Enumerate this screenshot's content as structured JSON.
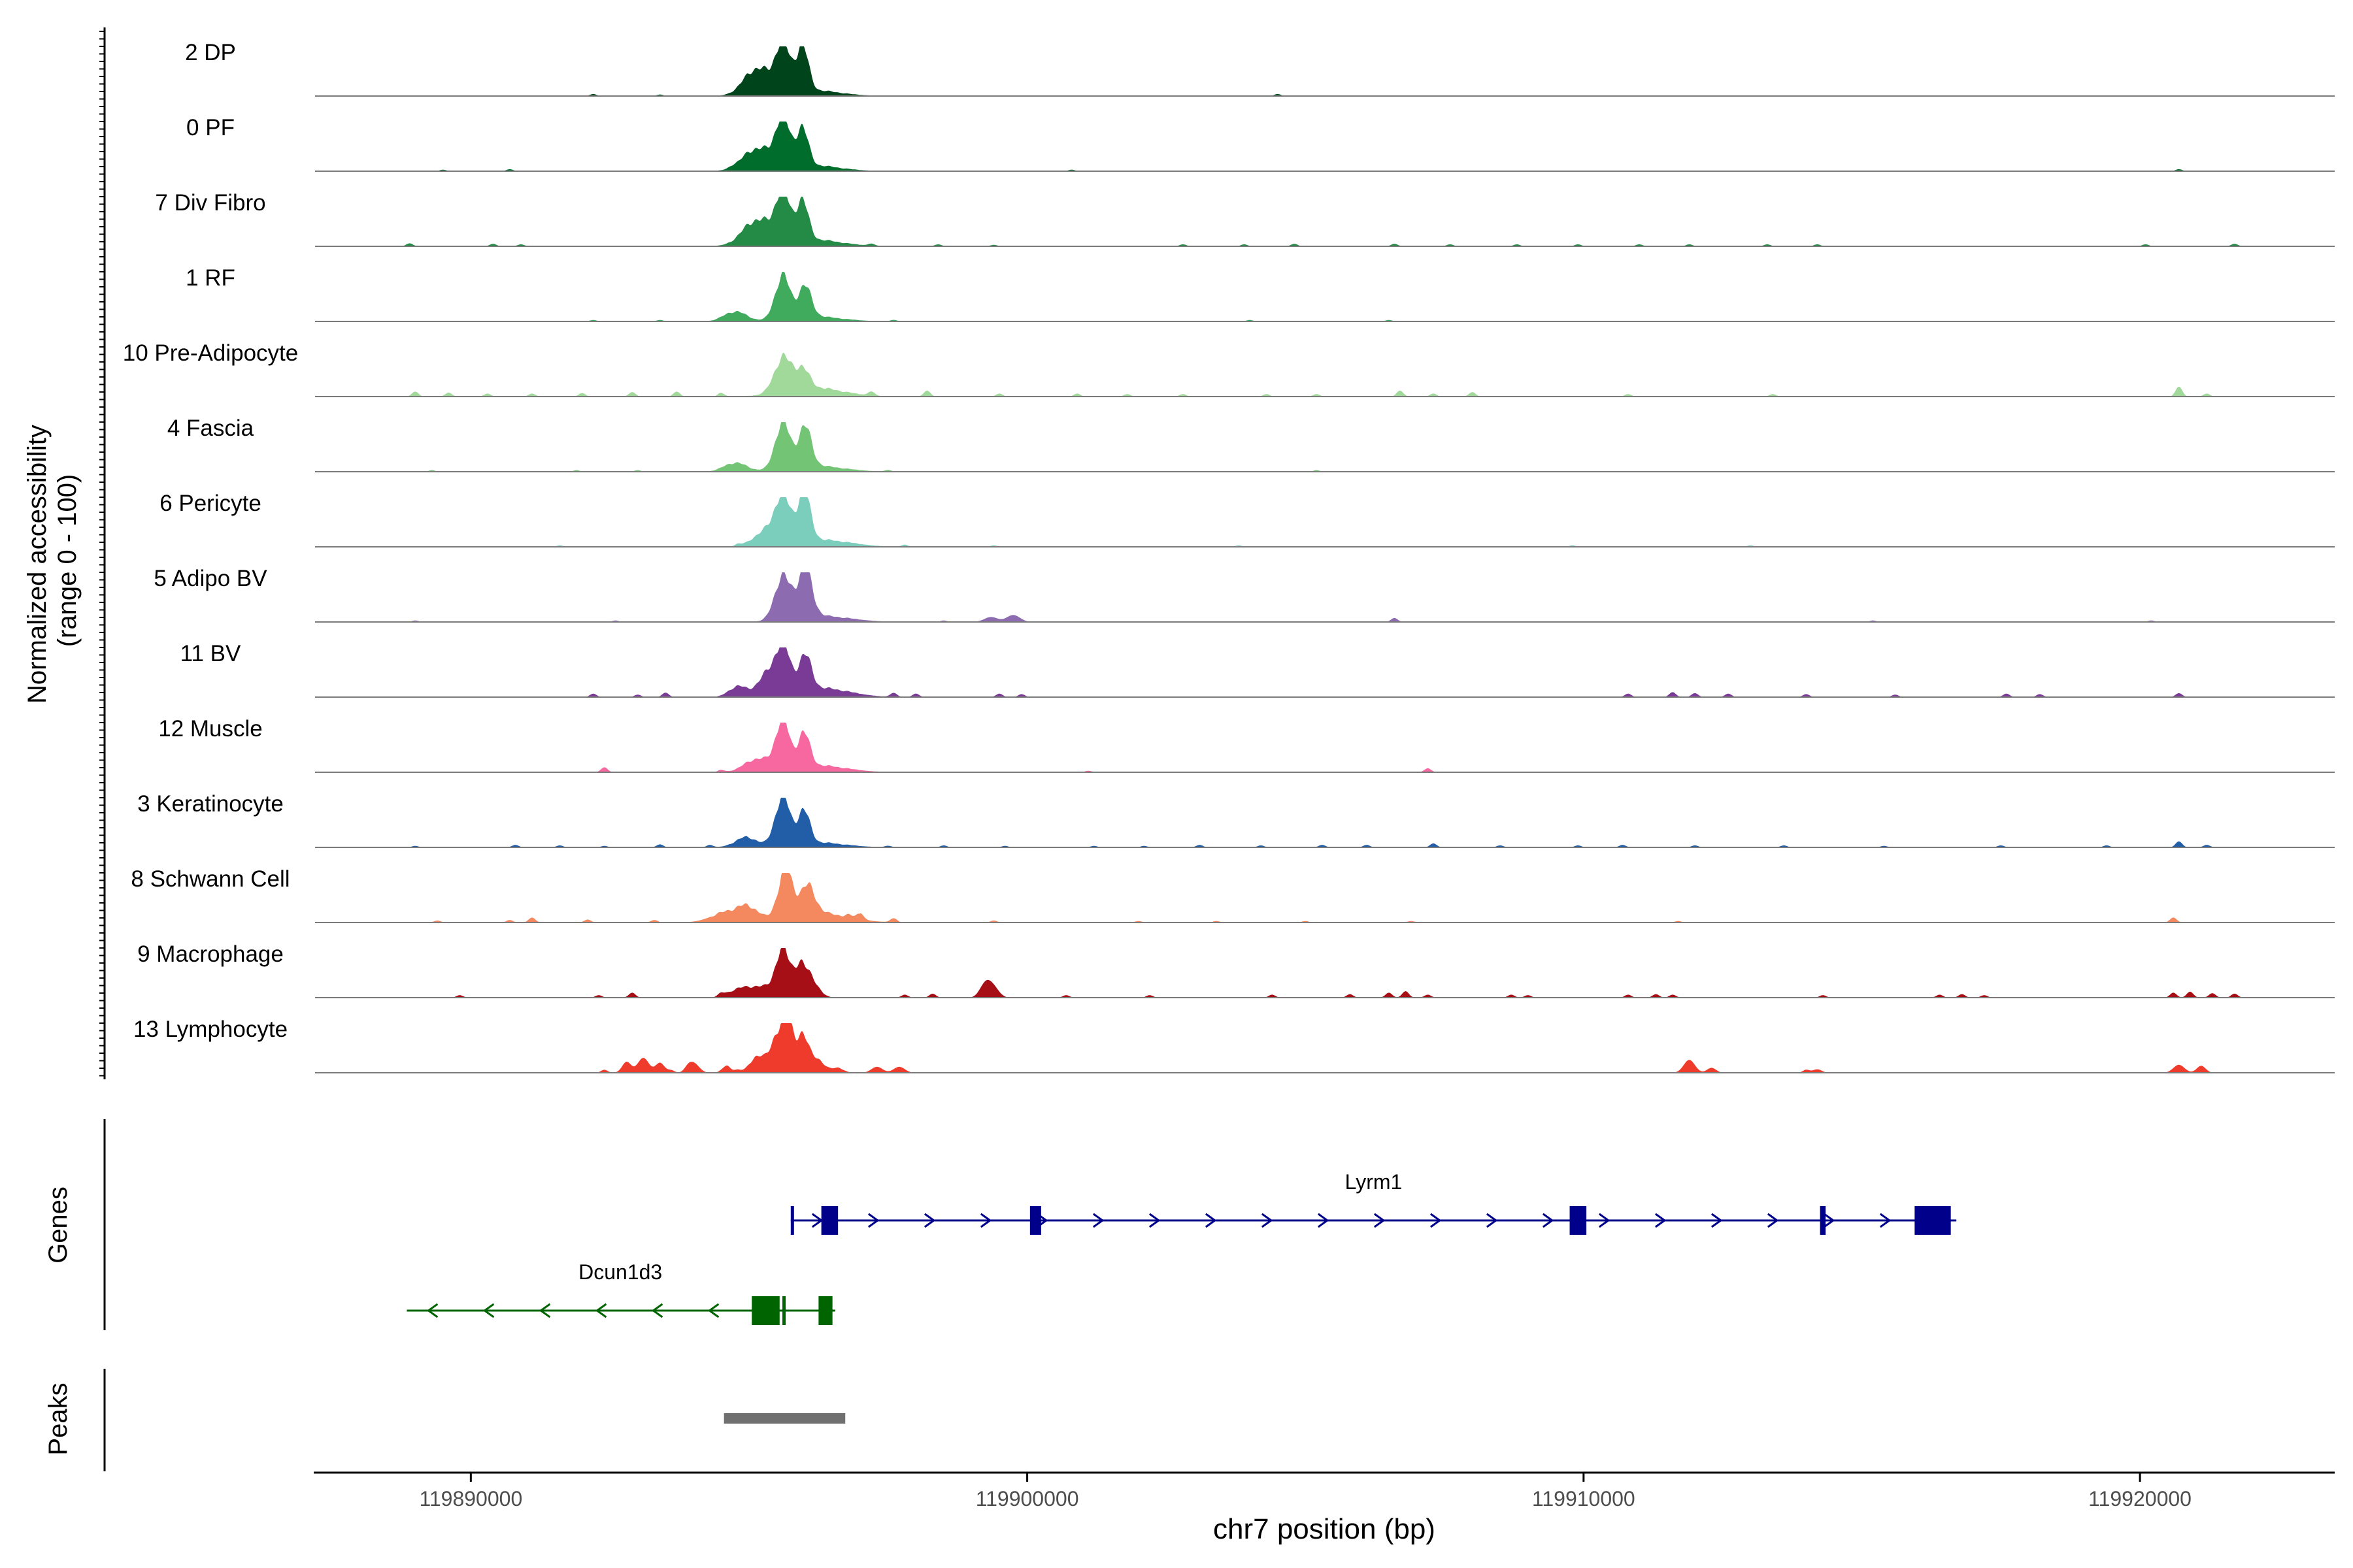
{
  "chart_data": {
    "type": "area",
    "xlabel": "chr7 position (bp)",
    "xlim": [
      119887200,
      119923500
    ],
    "x_ticks": [
      119890000,
      119900000,
      119910000,
      119920000
    ],
    "x_tick_labels": [
      "119890000",
      "119900000",
      "119910000",
      "119920000"
    ],
    "ylabel_line1": "Normalized accessibility",
    "ylabel_line2": "(range 0 - 100)",
    "ylim": [
      0,
      100
    ],
    "tracks": [
      {
        "name": "2 DP",
        "color": "#00441b",
        "peaks": [
          [
            119895150,
            55,
            240
          ],
          [
            119895600,
            100,
            120
          ],
          [
            119895950,
            94,
            110
          ],
          [
            119896100,
            12,
            500
          ]
        ],
        "noise": [
          [
            119892200,
            4
          ],
          [
            119893400,
            3
          ],
          [
            119904500,
            4
          ]
        ]
      },
      {
        "name": "0 PF",
        "color": "#006d2c",
        "peaks": [
          [
            119895150,
            45,
            260
          ],
          [
            119895600,
            100,
            120
          ],
          [
            119895950,
            78,
            110
          ],
          [
            119896100,
            12,
            500
          ]
        ],
        "noise": [
          [
            119889500,
            3
          ],
          [
            119890700,
            4
          ],
          [
            119894700,
            3
          ],
          [
            119900800,
            3
          ],
          [
            119920700,
            4
          ]
        ]
      },
      {
        "name": "7 Div Fibro",
        "color": "#238b45",
        "peaks": [
          [
            119895150,
            52,
            260
          ],
          [
            119895600,
            100,
            120
          ],
          [
            119895950,
            82,
            110
          ],
          [
            119896100,
            14,
            520
          ]
        ],
        "noise": [
          [
            119888900,
            6
          ],
          [
            119890400,
            5
          ],
          [
            119890900,
            4
          ],
          [
            119897200,
            4
          ],
          [
            119898400,
            4
          ],
          [
            119899400,
            3
          ],
          [
            119902800,
            4
          ],
          [
            119903900,
            4
          ],
          [
            119904800,
            5
          ],
          [
            119906600,
            5
          ],
          [
            119907600,
            4
          ],
          [
            119908800,
            4
          ],
          [
            119909900,
            4
          ],
          [
            119911000,
            4
          ],
          [
            119911900,
            4
          ],
          [
            119913300,
            4
          ],
          [
            119914200,
            4
          ],
          [
            119920100,
            4
          ],
          [
            119921700,
            5
          ]
        ]
      },
      {
        "name": "1 RF",
        "color": "#41ab5d",
        "peaks": [
          [
            119894750,
            20,
            200
          ],
          [
            119895600,
            88,
            130
          ],
          [
            119896000,
            62,
            120
          ],
          [
            119896150,
            10,
            500
          ]
        ],
        "noise": [
          [
            119892200,
            3
          ],
          [
            119893400,
            3
          ],
          [
            119897600,
            3
          ],
          [
            119904000,
            3
          ],
          [
            119906500,
            3
          ]
        ]
      },
      {
        "name": "10 Pre-Adipocyte",
        "color": "#a1d99b",
        "peaks": [
          [
            119895600,
            68,
            150
          ],
          [
            119895950,
            40,
            130
          ],
          [
            119896150,
            18,
            520
          ]
        ],
        "noise": [
          [
            119889000,
            10
          ],
          [
            119889600,
            8
          ],
          [
            119890300,
            6
          ],
          [
            119891100,
            6
          ],
          [
            119892000,
            7
          ],
          [
            119892900,
            9
          ],
          [
            119893700,
            10
          ],
          [
            119894500,
            7
          ],
          [
            119897200,
            8
          ],
          [
            119898200,
            12
          ],
          [
            119899500,
            6
          ],
          [
            119900900,
            6
          ],
          [
            119901800,
            5
          ],
          [
            119902800,
            5
          ],
          [
            119904300,
            5
          ],
          [
            119905200,
            5
          ],
          [
            119906700,
            12
          ],
          [
            119907300,
            6
          ],
          [
            119908000,
            9
          ],
          [
            119910800,
            5
          ],
          [
            119913400,
            5
          ],
          [
            119920700,
            20
          ],
          [
            119921200,
            6
          ]
        ]
      },
      {
        "name": "4 Fascia",
        "color": "#74c476",
        "peaks": [
          [
            119894750,
            18,
            200
          ],
          [
            119895600,
            94,
            130
          ],
          [
            119896000,
            80,
            120
          ],
          [
            119896150,
            12,
            520
          ]
        ],
        "noise": [
          [
            119889300,
            3
          ],
          [
            119891900,
            3
          ],
          [
            119893000,
            3
          ],
          [
            119897500,
            3
          ],
          [
            119905200,
            3
          ]
        ]
      },
      {
        "name": "6 Pericyte",
        "color": "#7bcdbc",
        "peaks": [
          [
            119895300,
            30,
            220
          ],
          [
            119895600,
            92,
            130
          ],
          [
            119895980,
            100,
            120
          ],
          [
            119896300,
            14,
            520
          ]
        ],
        "noise": [
          [
            119891600,
            3
          ],
          [
            119894800,
            4
          ],
          [
            119897800,
            4
          ],
          [
            119899400,
            3
          ],
          [
            119903800,
            3
          ],
          [
            119909800,
            3
          ],
          [
            119913000,
            3
          ]
        ]
      },
      {
        "name": "5 Adipo BV",
        "color": "#8c6bb1",
        "peaks": [
          [
            119895600,
            88,
            140
          ],
          [
            119896000,
            100,
            130
          ],
          [
            119896300,
            12,
            520
          ],
          [
            119899350,
            10,
            120
          ],
          [
            119899750,
            14,
            120
          ]
        ],
        "noise": [
          [
            119889000,
            3
          ],
          [
            119892600,
            3
          ],
          [
            119898500,
            3
          ],
          [
            119906600,
            8
          ],
          [
            119915200,
            3
          ],
          [
            119920200,
            3
          ]
        ]
      },
      {
        "name": "11 BV",
        "color": "#7a3b96",
        "peaks": [
          [
            119894800,
            22,
            160
          ],
          [
            119895300,
            40,
            160
          ],
          [
            119895600,
            100,
            130
          ],
          [
            119896000,
            70,
            120
          ],
          [
            119896300,
            18,
            500
          ]
        ],
        "noise": [
          [
            119892200,
            7
          ],
          [
            119893000,
            5
          ],
          [
            119893500,
            9
          ],
          [
            119897600,
            8
          ],
          [
            119898000,
            7
          ],
          [
            119899500,
            7
          ],
          [
            119899900,
            6
          ],
          [
            119910800,
            7
          ],
          [
            119911600,
            10
          ],
          [
            119912000,
            8
          ],
          [
            119912600,
            7
          ],
          [
            119914000,
            6
          ],
          [
            119915600,
            5
          ],
          [
            119917600,
            7
          ],
          [
            119918200,
            6
          ],
          [
            119920700,
            8
          ]
        ]
      },
      {
        "name": "12 Muscle",
        "color": "#f768a1",
        "peaks": [
          [
            119895150,
            26,
            230
          ],
          [
            119895600,
            100,
            120
          ],
          [
            119895980,
            68,
            110
          ],
          [
            119896200,
            14,
            520
          ]
        ],
        "noise": [
          [
            119892400,
            10
          ],
          [
            119894500,
            4
          ],
          [
            119901100,
            3
          ],
          [
            119907200,
            8
          ]
        ]
      },
      {
        "name": "3 Keratinocyte",
        "color": "#225ea8",
        "peaks": [
          [
            119894950,
            20,
            200
          ],
          [
            119895600,
            100,
            130
          ],
          [
            119895980,
            66,
            110
          ],
          [
            119896200,
            10,
            500
          ]
        ],
        "noise": [
          [
            119889000,
            3
          ],
          [
            119890800,
            5
          ],
          [
            119891600,
            4
          ],
          [
            119892400,
            3
          ],
          [
            119893400,
            6
          ],
          [
            119894300,
            5
          ],
          [
            119897500,
            3
          ],
          [
            119898500,
            4
          ],
          [
            119899600,
            3
          ],
          [
            119901200,
            3
          ],
          [
            119902100,
            3
          ],
          [
            119903100,
            5
          ],
          [
            119904200,
            4
          ],
          [
            119905300,
            5
          ],
          [
            119906100,
            5
          ],
          [
            119907300,
            8
          ],
          [
            119908500,
            4
          ],
          [
            119909900,
            4
          ],
          [
            119910700,
            5
          ],
          [
            119912000,
            4
          ],
          [
            119913600,
            4
          ],
          [
            119915400,
            3
          ],
          [
            119917500,
            4
          ],
          [
            119919400,
            4
          ],
          [
            119920700,
            12
          ],
          [
            119921200,
            5
          ]
        ]
      },
      {
        "name": "8 Schwann Cell",
        "color": "#f4895f",
        "peaks": [
          [
            119894600,
            20,
            280
          ],
          [
            119895000,
            26,
            200
          ],
          [
            119895650,
            100,
            130
          ],
          [
            119896050,
            58,
            140
          ],
          [
            119896300,
            18,
            500
          ]
        ],
        "noise": [
          [
            119889400,
            4
          ],
          [
            119890700,
            5
          ],
          [
            119891100,
            10
          ],
          [
            119892100,
            6
          ],
          [
            119893300,
            5
          ],
          [
            119896800,
            5
          ],
          [
            119897000,
            12
          ],
          [
            119897600,
            8
          ],
          [
            119899400,
            4
          ],
          [
            119902000,
            3
          ],
          [
            119903400,
            3
          ],
          [
            119905000,
            3
          ],
          [
            119906900,
            3
          ],
          [
            119911700,
            3
          ],
          [
            119920600,
            10
          ]
        ]
      },
      {
        "name": "9 Macrophage",
        "color": "#a50f15",
        "peaks": [
          [
            119894800,
            16,
            180
          ],
          [
            119895200,
            22,
            200
          ],
          [
            119895600,
            100,
            120
          ],
          [
            119895900,
            56,
            100
          ],
          [
            119896100,
            40,
            140
          ],
          [
            119899250,
            28,
            100
          ],
          [
            119899400,
            18,
            100
          ]
        ],
        "noise": [
          [
            119889800,
            5
          ],
          [
            119892300,
            5
          ],
          [
            119892900,
            10
          ],
          [
            119894500,
            6
          ],
          [
            119897800,
            6
          ],
          [
            119898300,
            8
          ],
          [
            119900700,
            5
          ],
          [
            119902200,
            5
          ],
          [
            119904400,
            6
          ],
          [
            119905800,
            7
          ],
          [
            119906500,
            10
          ],
          [
            119906800,
            13
          ],
          [
            119907200,
            6
          ],
          [
            119908700,
            6
          ],
          [
            119909000,
            5
          ],
          [
            119910800,
            6
          ],
          [
            119911300,
            7
          ],
          [
            119911600,
            6
          ],
          [
            119914300,
            5
          ],
          [
            119916400,
            6
          ],
          [
            119916800,
            7
          ],
          [
            119917200,
            5
          ],
          [
            119920600,
            10
          ],
          [
            119920900,
            12
          ],
          [
            119921300,
            9
          ],
          [
            119921700,
            8
          ]
        ]
      },
      {
        "name": "13 Lymphocyte",
        "color": "#ef3b2c",
        "peaks": [
          [
            119892800,
            22,
            80
          ],
          [
            119893100,
            30,
            100
          ],
          [
            119893400,
            20,
            80
          ],
          [
            119894000,
            20,
            100
          ],
          [
            119894600,
            14,
            80
          ],
          [
            119895150,
            34,
            130
          ],
          [
            119895500,
            72,
            120
          ],
          [
            119895700,
            94,
            100
          ],
          [
            119895950,
            70,
            100
          ],
          [
            119896200,
            30,
            140
          ],
          [
            119896600,
            10,
            100
          ],
          [
            119897300,
            12,
            100
          ],
          [
            119897700,
            12,
            100
          ],
          [
            119911900,
            26,
            100
          ],
          [
            119912300,
            10,
            80
          ],
          [
            119914200,
            7,
            80
          ],
          [
            119920700,
            16,
            100
          ],
          [
            119921100,
            14,
            80
          ]
        ],
        "noise": [
          [
            119892400,
            6
          ],
          [
            119893600,
            5
          ],
          [
            119893900,
            6
          ],
          [
            119894800,
            5
          ],
          [
            119914000,
            6
          ]
        ]
      }
    ],
    "genes_panel": {
      "label": "Genes",
      "genes": [
        {
          "name": "Lyrm1",
          "strand": "+",
          "color": "#00008b",
          "start": 119895750,
          "end": 119916700,
          "exons": [
            [
              119895750,
              119895800
            ],
            [
              119896300,
              119896600
            ],
            [
              119900050,
              119900250
            ],
            [
              119909750,
              119910050
            ],
            [
              119914250,
              119914350
            ],
            [
              119915950,
              119916600
            ]
          ]
        },
        {
          "name": "Dcun1d3",
          "strand": "-",
          "color": "#006400",
          "start": 119888850,
          "end": 119896550,
          "exons": [
            [
              119895050,
              119895550
            ],
            [
              119895600,
              119895650
            ],
            [
              119896250,
              119896500
            ]
          ]
        }
      ]
    },
    "peaks_panel": {
      "label": "Peaks",
      "color": "#707070",
      "regions": [
        [
          119894550,
          119896730
        ]
      ]
    }
  }
}
